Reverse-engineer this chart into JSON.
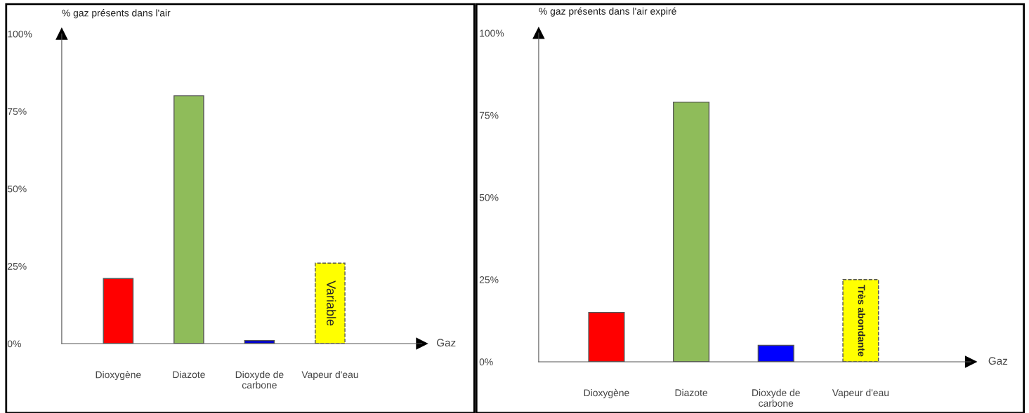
{
  "chart_data": [
    {
      "type": "bar",
      "ylabel": "% gaz présents dans l'air",
      "xlabel": "Gaz",
      "categories": [
        "Dioxygène",
        "Diazote",
        "Dioxyde de\ncarbone",
        "Vapeur d'eau"
      ],
      "ylim": [
        0,
        100
      ],
      "yticks": [
        {
          "value": 0,
          "label": "0%"
        },
        {
          "value": 25,
          "label": "25%"
        },
        {
          "value": 50,
          "label": "50%"
        },
        {
          "value": 75,
          "label": "75%"
        },
        {
          "value": 100,
          "label": "100%"
        }
      ],
      "series": [
        {
          "colors": [
            "#ff0000",
            "#8fbc5a",
            "#0000cc",
            null
          ],
          "values": [
            21,
            80,
            1,
            null
          ]
        },
        {
          "color": "#ffff00",
          "line_style": "dashed",
          "values": [
            null,
            null,
            null,
            26
          ],
          "value_labels": [
            null,
            null,
            null,
            "Variable"
          ]
        }
      ]
    },
    {
      "type": "bar",
      "ylabel": "% gaz présents dans l'air expiré",
      "xlabel": "Gaz",
      "categories": [
        "Dioxygène",
        "Diazote",
        "Dioxyde de\ncarbone",
        "Vapeur d'eau"
      ],
      "ylim": [
        0,
        100
      ],
      "yticks": [
        {
          "value": 0,
          "label": "0%"
        },
        {
          "value": 25,
          "label": "25%"
        },
        {
          "value": 50,
          "label": "50%"
        },
        {
          "value": 75,
          "label": "75%"
        },
        {
          "value": 100,
          "label": "100%"
        }
      ],
      "series": [
        {
          "colors": [
            "#ff0000",
            "#8fbc5a",
            "#0000ff",
            null
          ],
          "values": [
            15,
            79,
            5,
            null
          ]
        },
        {
          "color": "#ffff00",
          "line_style": "dashed",
          "values": [
            null,
            null,
            null,
            25
          ],
          "value_labels": [
            null,
            null,
            null,
            "Très abondante"
          ]
        }
      ]
    }
  ]
}
